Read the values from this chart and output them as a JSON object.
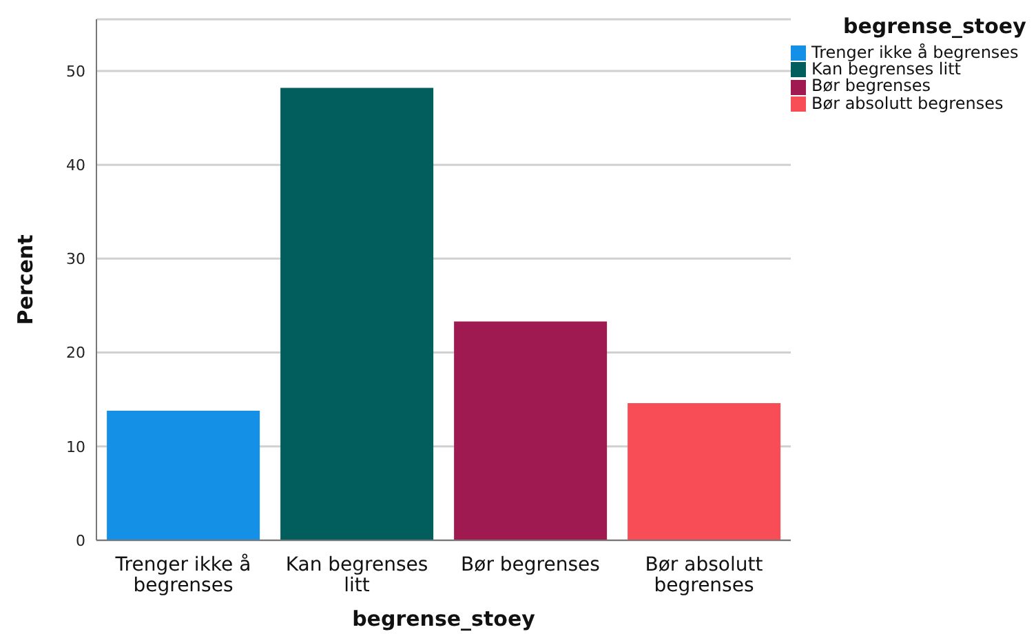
{
  "chart_data": {
    "type": "bar",
    "categories": [
      "Trenger ikke å begrenses",
      "Kan begrenses litt",
      "Bør begrenses",
      "Bør absolutt begrenses"
    ],
    "series": [
      {
        "name": "Trenger ikke å begrenses",
        "color": "#1491e6",
        "values": [
          13.8,
          null,
          null,
          null
        ]
      },
      {
        "name": "Kan begrenses litt",
        "color": "#025e5c",
        "values": [
          null,
          48.2,
          null,
          null
        ]
      },
      {
        "name": "Bør begrenses",
        "color": "#9e1a51",
        "values": [
          null,
          null,
          23.3,
          null
        ]
      },
      {
        "name": "Bør absolutt begrenses",
        "color": "#f84d56",
        "values": [
          null,
          null,
          null,
          14.6
        ]
      }
    ],
    "stacked": true,
    "xlabel": "begrense_stoey",
    "ylabel": "Percent",
    "legend_title": "begrense_stoey",
    "ylim": [
      0,
      55.5
    ],
    "yticks": [
      0,
      10,
      20,
      30,
      40,
      50
    ],
    "grid": "y",
    "legend": "top right"
  }
}
